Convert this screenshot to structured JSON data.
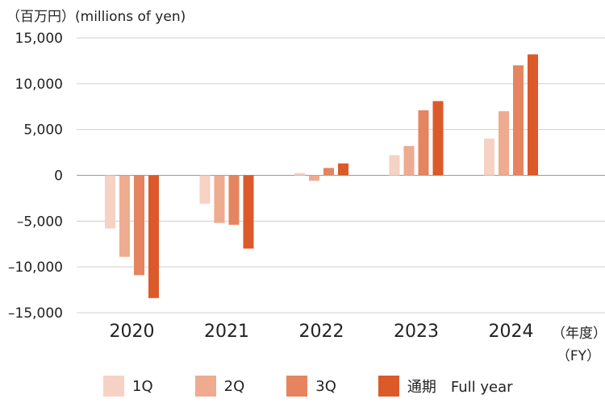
{
  "chart_data": {
    "type": "bar",
    "unit_label": "（百万円）(millions of yen)",
    "x_unit_label_ja": "（年度）",
    "x_unit_label_en": "（FY）",
    "categories": [
      "2020",
      "2021",
      "2022",
      "2023",
      "2024"
    ],
    "series": [
      {
        "name": "1Q",
        "values": [
          -5800,
          -3100,
          250,
          2200,
          4000
        ],
        "color": "#f6d2c4"
      },
      {
        "name": "2Q",
        "values": [
          -8900,
          -5200,
          -600,
          3200,
          7000
        ],
        "color": "#eeab8f"
      },
      {
        "name": "3Q",
        "values": [
          -10900,
          -5400,
          800,
          7100,
          12000
        ],
        "color": "#e5845f"
      },
      {
        "name": "通期　Full year",
        "values": [
          -13400,
          -8000,
          1300,
          8100,
          13200
        ],
        "color": "#dc5a2a"
      }
    ],
    "ylim": [
      -15000,
      15000
    ],
    "yticks": [
      15000,
      10000,
      5000,
      0,
      -5000,
      -10000,
      -15000
    ],
    "ytick_labels": [
      "15,000",
      "10,000",
      "5,000",
      "0",
      "–5,000",
      "–10,000",
      "–15,000"
    ],
    "grid": true,
    "legend_position": "bottom"
  }
}
